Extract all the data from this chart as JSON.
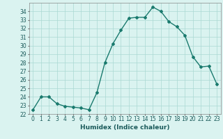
{
  "x": [
    0,
    1,
    2,
    3,
    4,
    5,
    6,
    7,
    8,
    9,
    10,
    11,
    12,
    13,
    14,
    15,
    16,
    17,
    18,
    19,
    20,
    21,
    22,
    23
  ],
  "y": [
    22.5,
    24.0,
    24.0,
    23.2,
    22.9,
    22.8,
    22.7,
    22.5,
    24.5,
    28.0,
    30.2,
    31.8,
    33.2,
    33.3,
    33.3,
    34.5,
    34.0,
    32.8,
    32.2,
    31.2,
    28.7,
    27.5,
    27.6,
    25.5
  ],
  "line_color": "#1a7a6e",
  "marker": "D",
  "markersize": 2.0,
  "linewidth": 1.0,
  "bg_color": "#daf3f0",
  "grid_color": "#aad8d3",
  "xlabel": "Humidex (Indice chaleur)",
  "xlabel_fontsize": 6.5,
  "tick_fontsize": 5.5,
  "ylim": [
    22,
    35
  ],
  "xlim": [
    -0.5,
    23.5
  ],
  "yticks": [
    22,
    23,
    24,
    25,
    26,
    27,
    28,
    29,
    30,
    31,
    32,
    33,
    34
  ],
  "xticks": [
    0,
    1,
    2,
    3,
    4,
    5,
    6,
    7,
    8,
    9,
    10,
    11,
    12,
    13,
    14,
    15,
    16,
    17,
    18,
    19,
    20,
    21,
    22,
    23
  ],
  "spine_color": "#888888",
  "text_color": "#1a5a5a"
}
